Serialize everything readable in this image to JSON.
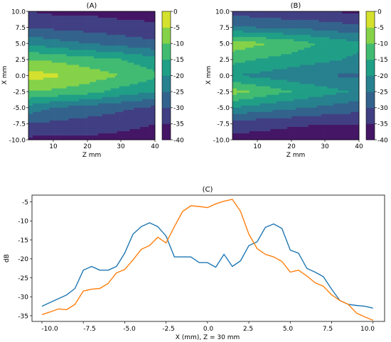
{
  "colors": {
    "line1": "#1f77b4",
    "line2": "#ff7f0e",
    "viridis": [
      "#440154",
      "#46327e",
      "#365c8d",
      "#277f8e",
      "#1fa187",
      "#4ac16d",
      "#a0da39",
      "#fde725"
    ]
  },
  "chart_data": [
    {
      "type": "heatmap",
      "title": "(A)",
      "xlabel": "Z mm",
      "ylabel": "X mm",
      "xlim": [
        3,
        40
      ],
      "ylim": [
        -10,
        10
      ],
      "x_ticks": [
        "10",
        "20",
        "30",
        "40"
      ],
      "y_ticks": [
        "10.0",
        "7.5",
        "5.0",
        "2.5",
        "0.0",
        "-2.5",
        "-5.0",
        "-7.5",
        "-10.0"
      ],
      "colorbar_ticks": [
        "0",
        "-5",
        "-10",
        "-15",
        "-20",
        "-25",
        "-30",
        "-35",
        "-40"
      ],
      "colorbar_range": [
        -40,
        0
      ],
      "x": [
        3,
        10,
        20,
        30,
        40
      ],
      "y": [
        -10,
        -7.5,
        -5,
        -2.5,
        0,
        2.5,
        5,
        7.5,
        10
      ],
      "z": [
        [
          -36,
          -37,
          -36,
          -37,
          -38
        ],
        [
          -30,
          -31,
          -32,
          -33,
          -35
        ],
        [
          -22,
          -25,
          -27,
          -29,
          -31
        ],
        [
          -10,
          -11,
          -13,
          -17,
          -20
        ],
        [
          -3,
          -4,
          -7,
          -10,
          -14
        ],
        [
          -10,
          -11,
          -13,
          -15,
          -18
        ],
        [
          -21,
          -23,
          -25,
          -27,
          -29
        ],
        [
          -30,
          -31,
          -32,
          -33,
          -34
        ],
        [
          -35,
          -36,
          -36,
          -37,
          -37
        ]
      ]
    },
    {
      "type": "heatmap",
      "title": "(B)",
      "xlabel": "Z mm",
      "ylabel": "X mm",
      "xlim": [
        3,
        40
      ],
      "ylim": [
        -10,
        10
      ],
      "x_ticks": [
        "10",
        "20",
        "30",
        "40"
      ],
      "y_ticks": [
        "10.0",
        "7.5",
        "5.0",
        "2.5",
        "0.0",
        "-2.5",
        "-5.0",
        "-7.5",
        "-10.0"
      ],
      "colorbar_ticks": [
        "0",
        "-5",
        "-10",
        "-15",
        "-20",
        "-25",
        "-30",
        "-35",
        "-40"
      ],
      "colorbar_range": [
        -40,
        0
      ],
      "x": [
        3,
        10,
        20,
        30,
        40
      ],
      "y": [
        -10,
        -7.5,
        -5,
        -2.5,
        0,
        2.5,
        5,
        7.5,
        10
      ],
      "z": [
        [
          -37,
          -37,
          -38,
          -38,
          -38
        ],
        [
          -32,
          -33,
          -34,
          -35,
          -35
        ],
        [
          -20,
          -22,
          -24,
          -26,
          -28
        ],
        [
          -8,
          -11,
          -15,
          -18,
          -21
        ],
        [
          -20,
          -21,
          -23,
          -25,
          -26
        ],
        [
          -13,
          -15,
          -17,
          -19,
          -21
        ],
        [
          -7,
          -9,
          -12,
          -16,
          -19
        ],
        [
          -24,
          -25,
          -26,
          -27,
          -29
        ],
        [
          -32,
          -33,
          -34,
          -35,
          -36
        ]
      ]
    },
    {
      "type": "line",
      "title": "(C)",
      "xlabel": "X (mm), Z = 30 mm",
      "ylabel": "dB",
      "xlim": [
        -10.6,
        10.7
      ],
      "ylim": [
        -36.5,
        -3.2
      ],
      "x_ticks": [
        "-10.0",
        "-7.5",
        "-5.0",
        "-2.5",
        "0.0",
        "2.5",
        "5.0",
        "7.5",
        "10.0"
      ],
      "y_ticks": [
        "-5",
        "-10",
        "-15",
        "-20",
        "-25",
        "-30",
        "-35"
      ],
      "series": [
        {
          "x": [
            -10.0,
            -9.5,
            -9.0,
            -8.5,
            -8.0,
            -7.5,
            -7.0,
            -6.5,
            -6.0,
            -5.5,
            -5.0,
            -4.5,
            -4.0,
            -3.5,
            -3.0,
            -2.5,
            -2.0,
            -1.5,
            -1.0,
            -0.5,
            0.0,
            0.5,
            1.0,
            1.5,
            2.0,
            2.5,
            3.0,
            3.5,
            4.0,
            4.5,
            5.0,
            5.5,
            6.0,
            6.5,
            7.0,
            7.5,
            8.0,
            8.5,
            9.0,
            9.5,
            10.0
          ],
          "y": [
            -32.5,
            -31.5,
            -30.5,
            -29.5,
            -27.8,
            -23.0,
            -22.0,
            -23.0,
            -23.0,
            -22.0,
            -18.5,
            -13.5,
            -11.5,
            -10.5,
            -11.5,
            -14.0,
            -19.5,
            -19.5,
            -19.5,
            -21.0,
            -21.0,
            -22.2,
            -18.8,
            -22.0,
            -20.5,
            -16.5,
            -15.5,
            -11.7,
            -10.8,
            -12.0,
            -17.7,
            -18.5,
            -22.5,
            -23.5,
            -24.7,
            -28.0,
            -31.0,
            -32.0,
            -32.3,
            -32.5,
            -33.0
          ]
        },
        {
          "x": [
            -10.0,
            -9.5,
            -9.0,
            -8.5,
            -8.0,
            -7.5,
            -7.0,
            -6.5,
            -6.0,
            -5.5,
            -5.0,
            -4.5,
            -4.0,
            -3.5,
            -3.0,
            -2.5,
            -2.0,
            -1.5,
            -1.0,
            -0.5,
            0.0,
            0.5,
            1.0,
            1.5,
            2.0,
            2.5,
            3.0,
            3.5,
            4.0,
            4.5,
            5.0,
            5.5,
            6.0,
            6.5,
            7.0,
            7.5,
            8.0,
            8.5,
            9.0,
            9.5,
            10.0
          ],
          "y": [
            -34.7,
            -34.0,
            -33.2,
            -33.4,
            -32.0,
            -28.5,
            -28.0,
            -27.8,
            -26.5,
            -23.7,
            -22.8,
            -20.3,
            -17.5,
            -16.5,
            -14.3,
            -15.8,
            -11.5,
            -7.5,
            -6.0,
            -6.2,
            -6.5,
            -5.5,
            -4.8,
            -4.3,
            -7.5,
            -13.5,
            -17.3,
            -18.8,
            -19.5,
            -20.7,
            -23.5,
            -23.0,
            -24.5,
            -26.3,
            -27.2,
            -29.5,
            -31.0,
            -32.0,
            -34.3,
            -35.3,
            -36.2
          ]
        }
      ]
    }
  ]
}
